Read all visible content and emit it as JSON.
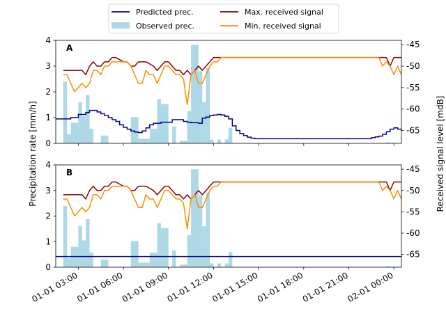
{
  "chart_data": {
    "type": "line",
    "legend": {
      "placement": "top-center",
      "entries": [
        {
          "name": "Predicted prec.",
          "kind": "line",
          "color": "#00008b"
        },
        {
          "name": "Observed prec.",
          "kind": "bar",
          "color": "#add8e6"
        },
        {
          "name": "Max. received signal",
          "kind": "line",
          "color": "#8b0000"
        },
        {
          "name": "Min. received signal",
          "kind": "line",
          "color": "#ff8c00"
        }
      ]
    },
    "ylabel": "Precipitation rate [mm/h]",
    "y2label": "Received signal level [mdB]",
    "ylim": [
      0,
      4
    ],
    "y2lim": [
      -68,
      -44
    ],
    "yticks": [
      0,
      1,
      2,
      3,
      4
    ],
    "y2ticks": [
      -45,
      -50,
      -55,
      -60,
      -65
    ],
    "xlim": [
      1.5,
      24.5
    ],
    "xticks": [
      {
        "hour": 3,
        "label": "01-01 03:00"
      },
      {
        "hour": 6,
        "label": "01-01 06:00"
      },
      {
        "hour": 9,
        "label": "01-01 09:00"
      },
      {
        "hour": 12,
        "label": "01-01 12:00"
      },
      {
        "hour": 15,
        "label": "01-01 15:00"
      },
      {
        "hour": 18,
        "label": "01-01 18:00"
      },
      {
        "hour": 21,
        "label": "01-01 21:00"
      },
      {
        "hour": 24,
        "label": "02-01 00:00"
      }
    ],
    "observed_prec": {
      "bar_width_hours": 0.25,
      "bars": [
        [
          2.0,
          2.4
        ],
        [
          2.25,
          0.35
        ],
        [
          2.5,
          0.8
        ],
        [
          2.75,
          0.8
        ],
        [
          3.0,
          1.6
        ],
        [
          3.25,
          1.05
        ],
        [
          3.5,
          1.88
        ],
        [
          3.75,
          0.57
        ],
        [
          4.5,
          0.3
        ],
        [
          4.75,
          0.3
        ],
        [
          6.5,
          1.02
        ],
        [
          6.75,
          1.02
        ],
        [
          7.0,
          0.18
        ],
        [
          7.25,
          0.18
        ],
        [
          7.5,
          0.18
        ],
        [
          7.75,
          0.57
        ],
        [
          8.0,
          0.57
        ],
        [
          8.25,
          1.72
        ],
        [
          8.5,
          1.53
        ],
        [
          8.75,
          1.53
        ],
        [
          9.25,
          0.66
        ],
        [
          9.75,
          0.1
        ],
        [
          10.0,
          0.1
        ],
        [
          10.25,
          1.25
        ],
        [
          10.5,
          3.83
        ],
        [
          10.75,
          3.83
        ],
        [
          11.0,
          2.8
        ],
        [
          11.25,
          1.6
        ],
        [
          11.5,
          2.92
        ],
        [
          11.75,
          0.15
        ],
        [
          12.25,
          0.15
        ],
        [
          12.75,
          0.15
        ],
        [
          13.0,
          0.6
        ],
        [
          23.5,
          0.04
        ],
        [
          24.5,
          0.3
        ],
        [
          24.75,
          0.3
        ]
      ]
    },
    "predicted_prec_A": [
      [
        1.5,
        0.95
      ],
      [
        2.25,
        0.95
      ],
      [
        2.5,
        1.0
      ],
      [
        2.75,
        1.0
      ],
      [
        3.0,
        1.12
      ],
      [
        3.25,
        1.12
      ],
      [
        3.5,
        1.2
      ],
      [
        3.75,
        1.28
      ],
      [
        4.0,
        1.28
      ],
      [
        4.25,
        1.22
      ],
      [
        4.5,
        1.15
      ],
      [
        4.75,
        1.08
      ],
      [
        5.0,
        1.0
      ],
      [
        5.25,
        0.92
      ],
      [
        5.5,
        0.85
      ],
      [
        5.75,
        0.72
      ],
      [
        6.0,
        0.62
      ],
      [
        6.25,
        0.55
      ],
      [
        6.5,
        0.48
      ],
      [
        6.75,
        0.44
      ],
      [
        7.0,
        0.42
      ],
      [
        7.25,
        0.48
      ],
      [
        7.5,
        0.6
      ],
      [
        7.75,
        0.72
      ],
      [
        8.0,
        0.78
      ],
      [
        8.5,
        0.82
      ],
      [
        9.0,
        0.82
      ],
      [
        9.25,
        0.92
      ],
      [
        9.75,
        0.92
      ],
      [
        10.0,
        0.85
      ],
      [
        10.25,
        0.82
      ],
      [
        10.5,
        0.8
      ],
      [
        11.0,
        0.78
      ],
      [
        11.25,
        0.98
      ],
      [
        11.5,
        1.02
      ],
      [
        11.75,
        1.08
      ],
      [
        12.0,
        1.1
      ],
      [
        12.25,
        1.12
      ],
      [
        12.5,
        1.1
      ],
      [
        12.75,
        1.05
      ],
      [
        13.0,
        0.95
      ],
      [
        13.25,
        0.68
      ],
      [
        13.5,
        0.5
      ],
      [
        13.75,
        0.38
      ],
      [
        14.0,
        0.3
      ],
      [
        14.25,
        0.24
      ],
      [
        14.5,
        0.2
      ],
      [
        14.75,
        0.18
      ],
      [
        15.0,
        0.18
      ],
      [
        22.25,
        0.18
      ],
      [
        22.5,
        0.22
      ],
      [
        22.75,
        0.25
      ],
      [
        23.0,
        0.28
      ],
      [
        23.25,
        0.35
      ],
      [
        23.5,
        0.45
      ],
      [
        23.75,
        0.55
      ],
      [
        24.0,
        0.6
      ],
      [
        24.25,
        0.55
      ],
      [
        24.5,
        0.5
      ],
      [
        24.75,
        0.42
      ],
      [
        25.0,
        0.35
      ],
      [
        25.25,
        0.3
      ],
      [
        25.5,
        0.3
      ]
    ],
    "predicted_prec_B": [
      [
        1.5,
        0.42
      ],
      [
        25.5,
        0.42
      ]
    ],
    "max_received_signal": [
      [
        2.0,
        -51
      ],
      [
        3.25,
        -51
      ],
      [
        3.5,
        -52
      ],
      [
        3.75,
        -50
      ],
      [
        4.0,
        -49
      ],
      [
        4.25,
        -50
      ],
      [
        4.5,
        -50
      ],
      [
        4.75,
        -49
      ],
      [
        5.0,
        -49
      ],
      [
        5.25,
        -48
      ],
      [
        5.5,
        -48
      ],
      [
        6.0,
        -49
      ],
      [
        6.25,
        -49
      ],
      [
        6.5,
        -50
      ],
      [
        6.75,
        -50
      ],
      [
        7.0,
        -49
      ],
      [
        7.5,
        -49
      ],
      [
        8.0,
        -50
      ],
      [
        8.25,
        -51
      ],
      [
        8.5,
        -50
      ],
      [
        8.75,
        -49
      ],
      [
        9.0,
        -49
      ],
      [
        9.25,
        -50
      ],
      [
        9.5,
        -51
      ],
      [
        9.75,
        -51
      ],
      [
        10.0,
        -52
      ],
      [
        10.25,
        -51
      ],
      [
        10.5,
        -52
      ],
      [
        10.75,
        -51
      ],
      [
        11.0,
        -50
      ],
      [
        11.25,
        -51
      ],
      [
        11.5,
        -50
      ],
      [
        11.75,
        -49
      ],
      [
        12.0,
        -48
      ],
      [
        12.5,
        -48
      ],
      [
        12.75,
        -48
      ],
      [
        23.0,
        -48
      ],
      [
        23.25,
        -48
      ],
      [
        23.5,
        -48
      ],
      [
        23.75,
        -50
      ],
      [
        24.0,
        -48
      ],
      [
        24.25,
        -48
      ],
      [
        24.5,
        -48
      ],
      [
        24.75,
        -48
      ],
      [
        25.0,
        -48
      ],
      [
        25.25,
        -48
      ]
    ],
    "min_received_signal": [
      [
        2.0,
        -52
      ],
      [
        2.25,
        -52
      ],
      [
        2.5,
        -54
      ],
      [
        2.75,
        -56
      ],
      [
        3.0,
        -55
      ],
      [
        3.25,
        -54
      ],
      [
        3.5,
        -55
      ],
      [
        3.75,
        -54
      ],
      [
        4.0,
        -51
      ],
      [
        4.25,
        -51
      ],
      [
        4.5,
        -52
      ],
      [
        4.75,
        -50
      ],
      [
        5.0,
        -50
      ],
      [
        5.25,
        -49
      ],
      [
        5.5,
        -49
      ],
      [
        6.0,
        -49
      ],
      [
        6.25,
        -49
      ],
      [
        6.5,
        -50
      ],
      [
        6.75,
        -52
      ],
      [
        7.0,
        -54
      ],
      [
        7.25,
        -54
      ],
      [
        7.5,
        -51
      ],
      [
        7.75,
        -52
      ],
      [
        8.0,
        -52
      ],
      [
        8.25,
        -54
      ],
      [
        8.5,
        -52
      ],
      [
        8.75,
        -50
      ],
      [
        9.0,
        -50
      ],
      [
        9.25,
        -51
      ],
      [
        9.5,
        -52
      ],
      [
        9.75,
        -52
      ],
      [
        10.0,
        -53
      ],
      [
        10.25,
        -59
      ],
      [
        10.5,
        -52
      ],
      [
        10.75,
        -51
      ],
      [
        11.0,
        -54
      ],
      [
        11.25,
        -54
      ],
      [
        11.5,
        -52
      ],
      [
        11.75,
        -50
      ],
      [
        12.0,
        -49
      ],
      [
        12.25,
        -49
      ],
      [
        12.5,
        -48
      ],
      [
        12.75,
        -48
      ],
      [
        23.0,
        -48
      ],
      [
        23.25,
        -50
      ],
      [
        23.5,
        -49
      ],
      [
        23.75,
        -50
      ],
      [
        24.0,
        -52
      ],
      [
        24.25,
        -50
      ],
      [
        24.5,
        -52
      ],
      [
        24.75,
        -49
      ],
      [
        25.0,
        -49
      ],
      [
        25.25,
        -49
      ]
    ],
    "panels": [
      {
        "label": "A",
        "predicted_key": "predicted_prec_A"
      },
      {
        "label": "B",
        "predicted_key": "predicted_prec_B"
      }
    ]
  }
}
